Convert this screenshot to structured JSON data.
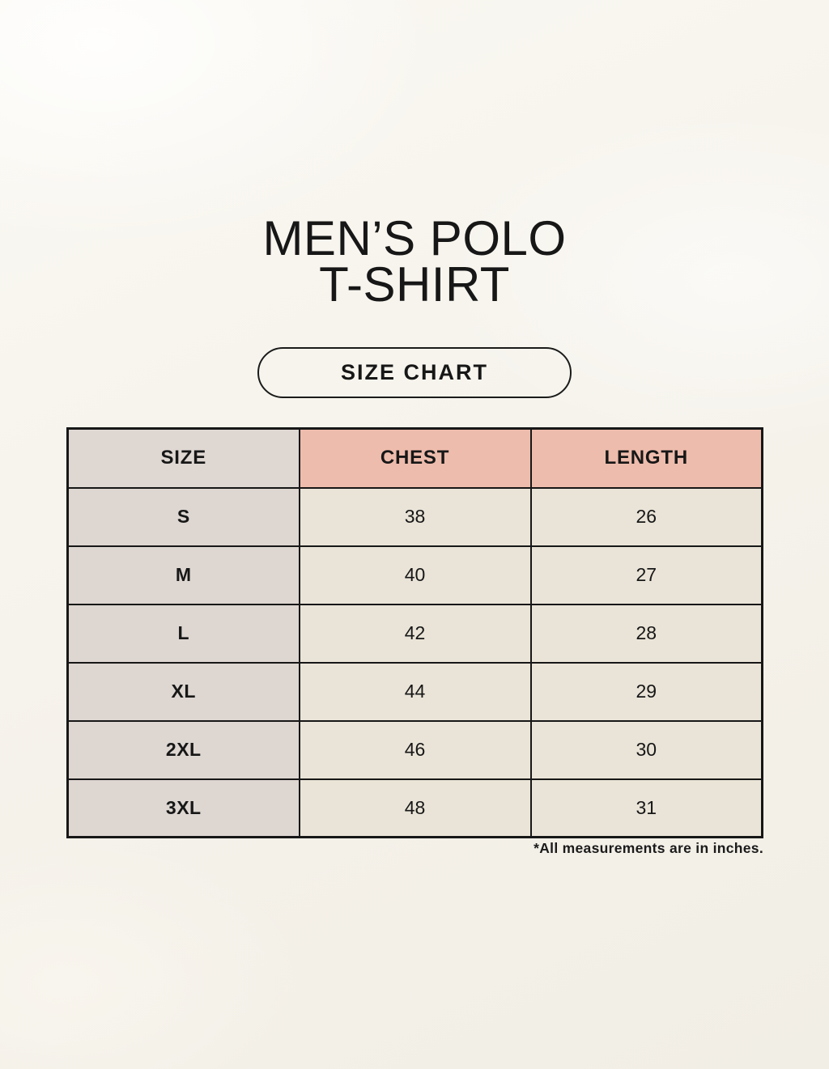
{
  "page": {
    "title_line1": "MEN’S POLO",
    "title_line2": "T-SHIRT",
    "badge_label": "SIZE CHART",
    "footnote": "*All measurements are in inches."
  },
  "chart_data": {
    "type": "table",
    "title": "MEN’S POLO T-SHIRT",
    "subtitle": "SIZE CHART",
    "columns": [
      "SIZE",
      "CHEST",
      "LENGTH"
    ],
    "rows": [
      [
        "S",
        38,
        26
      ],
      [
        "M",
        40,
        27
      ],
      [
        "L",
        42,
        28
      ],
      [
        "XL",
        44,
        29
      ],
      [
        "2XL",
        46,
        30
      ],
      [
        "3XL",
        48,
        31
      ]
    ],
    "note": "*All measurements are in inches.",
    "units": "inches"
  },
  "colors": {
    "page_background": "#f6f3ec",
    "accent_header_bg": "#eebcac",
    "size_column_bg": "#ddd6d1",
    "data_cell_bg": "#eae4d8",
    "table_border": "#171717",
    "text": "#171717"
  }
}
